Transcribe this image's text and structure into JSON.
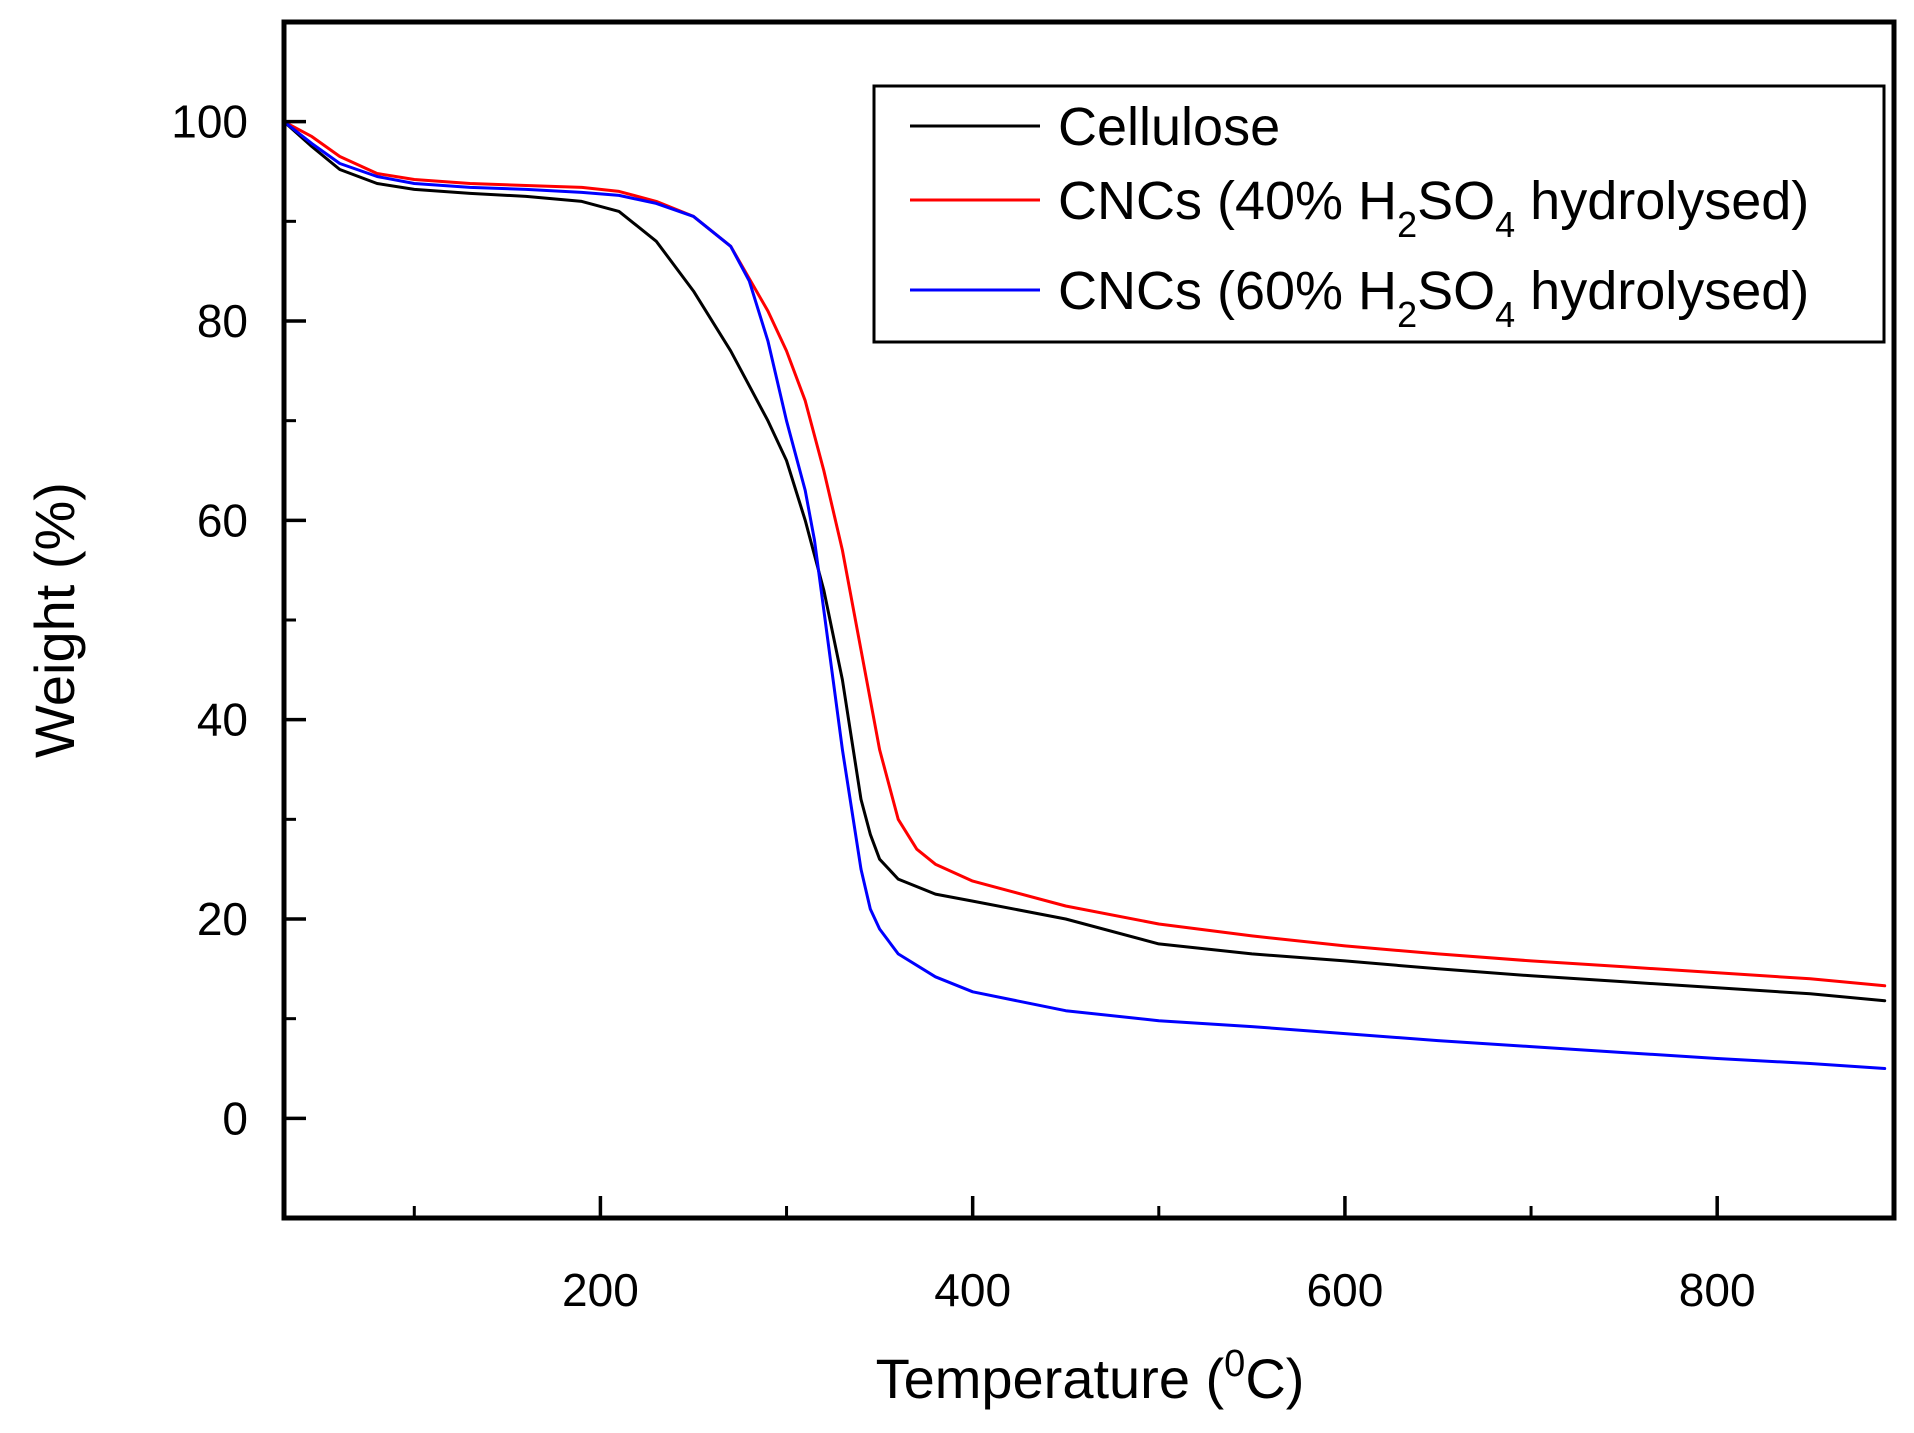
{
  "chart_data": {
    "type": "line",
    "title": "",
    "xlabel": {
      "main": "Temperature (",
      "sup": "0",
      "tail": "C)"
    },
    "ylabel": "Weight (%)",
    "xlim": [
      30,
      895
    ],
    "ylim": [
      -10,
      110
    ],
    "xticks_major": [
      200,
      400,
      600,
      800
    ],
    "xticks_minor": [
      100,
      300,
      500,
      700
    ],
    "yticks_major": [
      0,
      20,
      40,
      60,
      80,
      100
    ],
    "yticks_minor": [
      -10,
      10,
      30,
      50,
      70,
      90
    ],
    "legend_position": "top-right",
    "series": [
      {
        "name": "Cellulose",
        "legend_parts": [
          {
            "t": "Cellulose",
            "sub": false
          }
        ],
        "color": "#000000",
        "x": [
          30,
          45,
          60,
          80,
          100,
          130,
          160,
          190,
          210,
          230,
          250,
          270,
          290,
          300,
          310,
          320,
          330,
          335,
          340,
          345,
          350,
          360,
          380,
          400,
          450,
          500,
          550,
          600,
          650,
          700,
          750,
          800,
          850,
          890
        ],
        "y": [
          100,
          97.5,
          95.2,
          93.8,
          93.2,
          92.8,
          92.5,
          92.0,
          91.0,
          88.0,
          83.0,
          77.0,
          70.0,
          66.0,
          60.0,
          53.0,
          44.0,
          38.0,
          32.0,
          28.5,
          26.0,
          24.0,
          22.5,
          21.8,
          20.0,
          17.5,
          16.5,
          15.8,
          15.0,
          14.3,
          13.7,
          13.1,
          12.5,
          11.8
        ]
      },
      {
        "name": "CNCs (40% H2SO4 hydrolysed)",
        "legend_parts": [
          {
            "t": "CNCs (40% H",
            "sub": false
          },
          {
            "t": "2",
            "sub": true
          },
          {
            "t": "SO",
            "sub": false
          },
          {
            "t": "4",
            "sub": true
          },
          {
            "t": " hydrolysed)",
            "sub": false
          }
        ],
        "color": "#ff0000",
        "x": [
          30,
          45,
          60,
          80,
          100,
          130,
          160,
          190,
          210,
          230,
          250,
          270,
          290,
          300,
          310,
          320,
          330,
          340,
          350,
          360,
          370,
          380,
          400,
          450,
          500,
          550,
          600,
          650,
          700,
          750,
          800,
          850,
          890
        ],
        "y": [
          100,
          98.5,
          96.5,
          94.8,
          94.2,
          93.8,
          93.6,
          93.4,
          93.0,
          92.0,
          90.5,
          87.5,
          81.0,
          77.0,
          72.0,
          65.0,
          57.0,
          47.0,
          37.0,
          30.0,
          27.0,
          25.5,
          23.8,
          21.3,
          19.5,
          18.3,
          17.3,
          16.5,
          15.8,
          15.2,
          14.6,
          14.0,
          13.3
        ]
      },
      {
        "name": "CNCs (60% H2SO4 hydrolysed)",
        "legend_parts": [
          {
            "t": "CNCs (60% H",
            "sub": false
          },
          {
            "t": "2",
            "sub": true
          },
          {
            "t": "SO",
            "sub": false
          },
          {
            "t": "4",
            "sub": true
          },
          {
            "t": " hydrolysed)",
            "sub": false
          }
        ],
        "color": "#0000ff",
        "x": [
          30,
          45,
          60,
          80,
          100,
          130,
          160,
          190,
          210,
          230,
          250,
          270,
          280,
          290,
          300,
          310,
          315,
          320,
          325,
          330,
          335,
          340,
          345,
          350,
          360,
          380,
          400,
          450,
          500,
          550,
          600,
          650,
          700,
          750,
          800,
          850,
          890
        ],
        "y": [
          100,
          97.8,
          95.8,
          94.5,
          93.8,
          93.4,
          93.2,
          92.9,
          92.6,
          91.8,
          90.5,
          87.5,
          84.0,
          78.0,
          70.0,
          63.0,
          58.0,
          51.0,
          44.0,
          37.0,
          31.0,
          25.0,
          21.0,
          19.0,
          16.5,
          14.2,
          12.7,
          10.8,
          9.8,
          9.2,
          8.5,
          7.8,
          7.2,
          6.6,
          6.0,
          5.5,
          5.0
        ]
      }
    ]
  }
}
